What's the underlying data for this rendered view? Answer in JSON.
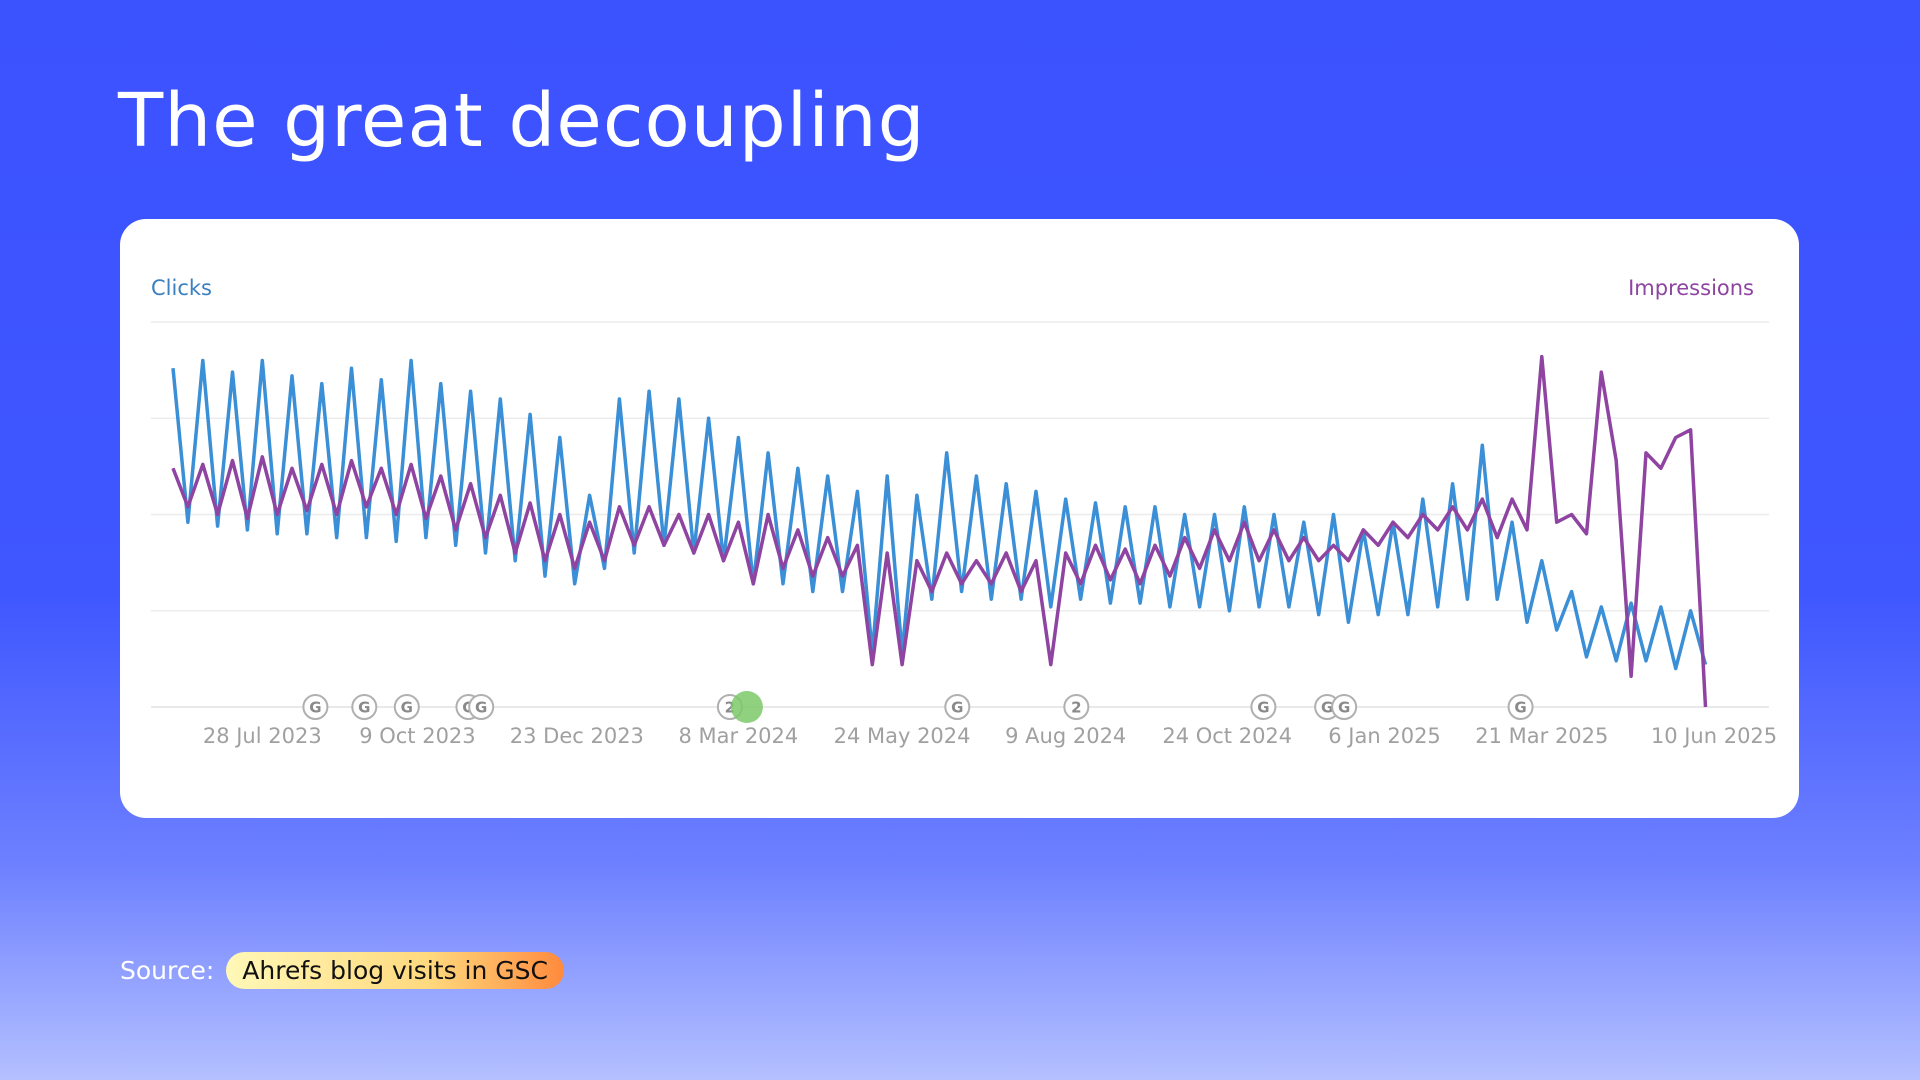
{
  "title": "The great decoupling",
  "source": {
    "label": "Source:",
    "text": "Ahrefs blog visits in GSC"
  },
  "chart_data": {
    "type": "line",
    "x": [
      "2023-06-16",
      "2023-06-23",
      "2023-06-30",
      "2023-07-07",
      "2023-07-14",
      "2023-07-21",
      "2023-07-28",
      "2023-08-04",
      "2023-08-11",
      "2023-08-18",
      "2023-08-25",
      "2023-09-01",
      "2023-09-08",
      "2023-09-15",
      "2023-09-22",
      "2023-09-29",
      "2023-10-06",
      "2023-10-13",
      "2023-10-20",
      "2023-10-27",
      "2023-11-03",
      "2023-11-10",
      "2023-11-17",
      "2023-11-24",
      "2023-12-01",
      "2023-12-08",
      "2023-12-15",
      "2023-12-22",
      "2023-12-29",
      "2024-01-05",
      "2024-01-12",
      "2024-01-19",
      "2024-01-26",
      "2024-02-02",
      "2024-02-09",
      "2024-02-16",
      "2024-02-23",
      "2024-03-01",
      "2024-03-08",
      "2024-03-15",
      "2024-03-22",
      "2024-03-29",
      "2024-04-05",
      "2024-04-12",
      "2024-04-19",
      "2024-04-26",
      "2024-05-03",
      "2024-05-10",
      "2024-05-17",
      "2024-05-24",
      "2024-05-31",
      "2024-06-07",
      "2024-06-14",
      "2024-06-21",
      "2024-06-28",
      "2024-07-05",
      "2024-07-12",
      "2024-07-19",
      "2024-07-26",
      "2024-08-02",
      "2024-08-09",
      "2024-08-16",
      "2024-08-23",
      "2024-08-30",
      "2024-09-06",
      "2024-09-13",
      "2024-09-20",
      "2024-09-27",
      "2024-10-04",
      "2024-10-11",
      "2024-10-18",
      "2024-10-25",
      "2024-11-01",
      "2024-11-08",
      "2024-11-15",
      "2024-11-22",
      "2024-11-29",
      "2024-12-06",
      "2024-12-13",
      "2024-12-20",
      "2024-12-27",
      "2025-01-03",
      "2025-01-10",
      "2025-01-17",
      "2025-01-24",
      "2025-01-31",
      "2025-02-07",
      "2025-02-14",
      "2025-02-21",
      "2025-02-28",
      "2025-03-07",
      "2025-03-14",
      "2025-03-21",
      "2025-03-28",
      "2025-04-04",
      "2025-04-11",
      "2025-04-18",
      "2025-04-25",
      "2025-05-02",
      "2025-05-09",
      "2025-05-16",
      "2025-05-23",
      "2025-05-30",
      "2025-06-06"
    ],
    "series": [
      {
        "name": "Clicks",
        "color": "#3a8fd6",
        "axis": "y",
        "values": [
          88,
          48,
          90,
          47,
          87,
          46,
          90,
          45,
          86,
          45,
          84,
          44,
          88,
          44,
          85,
          43,
          90,
          44,
          84,
          42,
          82,
          40,
          80,
          38,
          76,
          34,
          70,
          32,
          55,
          36,
          80,
          40,
          82,
          42,
          80,
          40,
          75,
          38,
          70,
          32,
          66,
          32,
          62,
          30,
          60,
          30,
          56,
          14,
          60,
          14,
          55,
          28,
          66,
          30,
          60,
          28,
          58,
          28,
          56,
          26,
          54,
          28,
          53,
          27,
          52,
          27,
          52,
          26,
          50,
          26,
          50,
          25,
          52,
          26,
          50,
          26,
          48,
          24,
          50,
          22,
          46,
          24,
          48,
          24,
          54,
          26,
          58,
          28,
          68,
          28,
          48,
          22,
          38,
          20,
          30,
          13,
          26,
          12,
          27,
          12,
          26,
          10,
          25,
          11
        ]
      },
      {
        "name": "Impressions",
        "color": "#8e44a0",
        "axis": "y2",
        "values": [
          62,
          52,
          63,
          50,
          64,
          49,
          65,
          50,
          62,
          51,
          63,
          50,
          64,
          52,
          62,
          50,
          63,
          49,
          60,
          46,
          58,
          44,
          55,
          40,
          53,
          38,
          50,
          36,
          48,
          38,
          52,
          42,
          52,
          42,
          50,
          40,
          50,
          38,
          48,
          32,
          50,
          36,
          46,
          34,
          44,
          34,
          42,
          11,
          40,
          11,
          38,
          30,
          40,
          32,
          38,
          32,
          40,
          30,
          38,
          11,
          40,
          32,
          42,
          33,
          41,
          32,
          42,
          34,
          44,
          36,
          46,
          38,
          48,
          38,
          46,
          38,
          44,
          38,
          42,
          38,
          46,
          42,
          48,
          44,
          50,
          46,
          52,
          46,
          54,
          44,
          54,
          46,
          91,
          48,
          50,
          45,
          87,
          64,
          8,
          66,
          62,
          70,
          72,
          0
        ]
      }
    ],
    "xlim": [
      "2023-06-16",
      "2025-06-10"
    ],
    "xticks": [
      {
        "value": "2023-07-28",
        "label": "28 Jul 2023"
      },
      {
        "value": "2023-10-09",
        "label": "9 Oct 2023"
      },
      {
        "value": "2023-12-23",
        "label": "23 Dec 2023"
      },
      {
        "value": "2024-03-08",
        "label": "8 Mar 2024"
      },
      {
        "value": "2024-05-24",
        "label": "24 May 2024"
      },
      {
        "value": "2024-08-09",
        "label": "9 Aug 2024"
      },
      {
        "value": "2024-10-24",
        "label": "24 Oct 2024"
      },
      {
        "value": "2025-01-06",
        "label": "6 Jan 2025"
      },
      {
        "value": "2025-03-21",
        "label": "21 Mar 2025"
      },
      {
        "value": "2025-06-10",
        "label": "10 Jun 2025"
      }
    ],
    "ylim": [
      0,
      100
    ],
    "y2lim": [
      0,
      100
    ],
    "grid": true,
    "markers": [
      {
        "x": "2023-08-22",
        "label": "G"
      },
      {
        "x": "2023-09-14",
        "label": "G"
      },
      {
        "x": "2023-10-04",
        "label": "G"
      },
      {
        "x": "2023-11-02",
        "label": "G"
      },
      {
        "x": "2023-11-08",
        "label": "G"
      },
      {
        "x": "2024-03-04",
        "label": "2"
      },
      {
        "x": "2024-03-12",
        "color": "#7cc96a"
      },
      {
        "x": "2024-06-19",
        "label": "G"
      },
      {
        "x": "2024-08-14",
        "label": "2"
      },
      {
        "x": "2024-11-10",
        "label": "G"
      },
      {
        "x": "2024-12-10",
        "label": "G"
      },
      {
        "x": "2024-12-18",
        "label": "G"
      },
      {
        "x": "2025-03-11",
        "label": "G"
      }
    ]
  }
}
